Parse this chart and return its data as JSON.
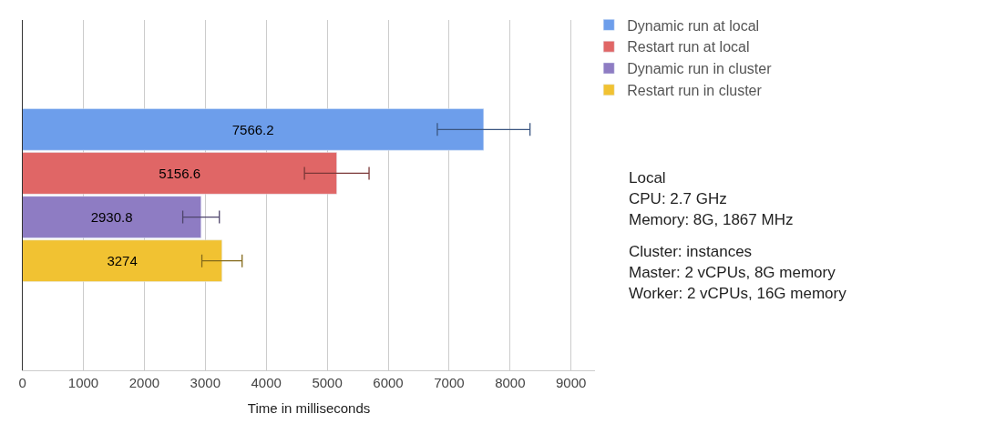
{
  "chart_data": {
    "type": "bar",
    "orientation": "horizontal",
    "categories": [
      null
    ],
    "xlabel": "Time in milliseconds",
    "xlim": [
      0,
      9400
    ],
    "xticks": [
      0,
      1000,
      2000,
      3000,
      4000,
      5000,
      6000,
      7000,
      8000,
      9000
    ],
    "grid": "x",
    "legend": "top right",
    "tick_labels": "x",
    "data_labels": true,
    "series": [
      {
        "name": "Dynamic run at local",
        "color": "#6d9eeb",
        "values": [
          7566.2
        ],
        "errors": [
          760
        ]
      },
      {
        "name": "Restart run at local",
        "color": "#e06666",
        "values": [
          5156.6
        ],
        "errors": [
          530
        ]
      },
      {
        "name": "Dynamic run in cluster",
        "color": "#8e7cc3",
        "values": [
          2930.8
        ],
        "errors": [
          300
        ]
      },
      {
        "name": "Restart run in cluster",
        "color": "#f1c232",
        "values": [
          3274
        ],
        "errors": [
          330
        ]
      }
    ],
    "annotations": [
      "Local",
      "CPU: 2.7 GHz",
      "Memory: 8G, 1867 MHz",
      "Cluster: instances",
      "Master: 2 vCPUs, 8G memory",
      "Worker: 2 vCPUs, 16G memory"
    ]
  }
}
